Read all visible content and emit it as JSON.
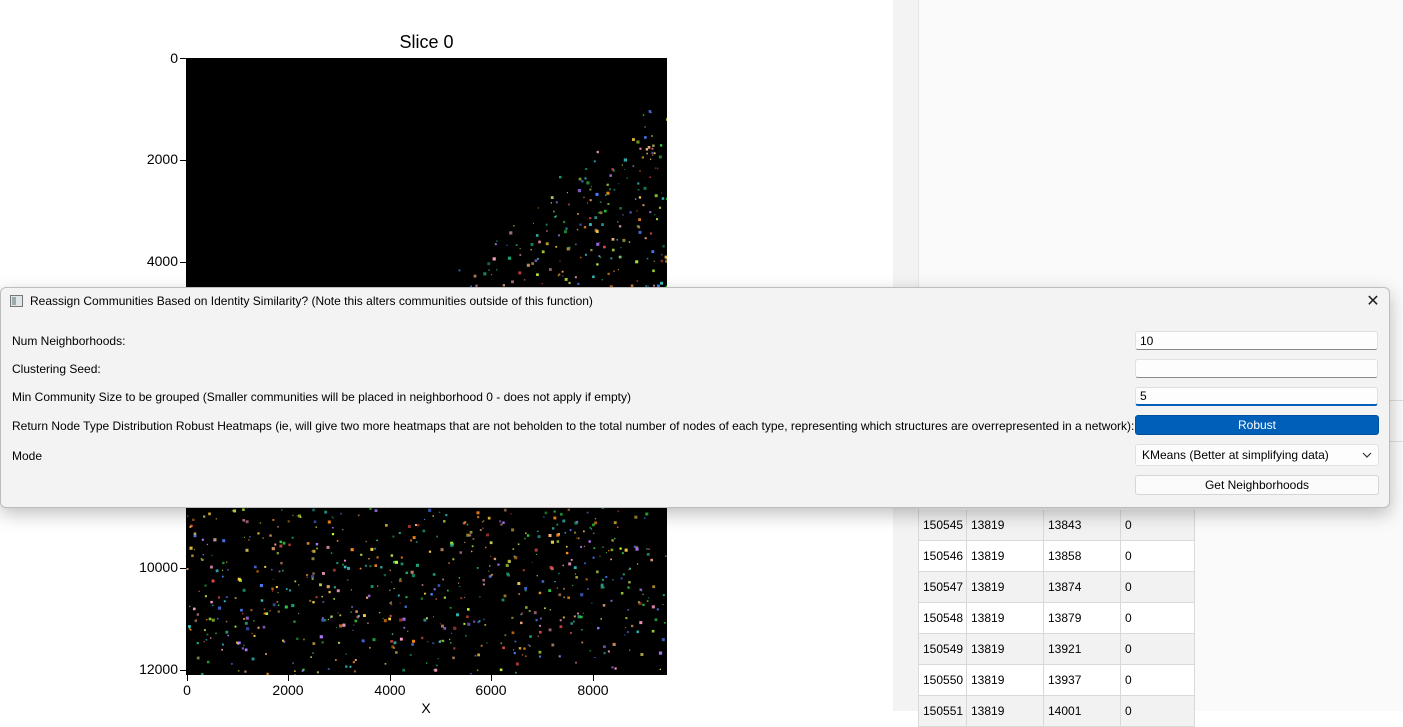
{
  "plot": {
    "title": "Slice 0",
    "xlabel": "X",
    "y_ticks": [
      "0",
      "2000",
      "4000",
      "10000",
      "12000"
    ],
    "x_ticks": [
      "0",
      "2000",
      "4000",
      "6000",
      "8000"
    ]
  },
  "dialog": {
    "title": "Reassign Communities Based on Identity Similarity? (Note this alters communities outside of this function)",
    "close_symbol": "✕",
    "fields": {
      "num_neighborhoods": {
        "label": "Num Neighborhoods:",
        "value": "10"
      },
      "clustering_seed": {
        "label": "Clustering Seed:",
        "value": ""
      },
      "min_community": {
        "label": "Min Community Size to be grouped (Smaller communities will be placed in neighborhood 0 - does not apply if empty)",
        "value": "5"
      },
      "robust": {
        "label": "Return Node Type Distribution Robust Heatmaps (ie, will give two more heatmaps that are not beholden to the total number of nodes of each type, representing which structures are overrepresented in a network):",
        "button": "Robust"
      },
      "mode": {
        "label": "Mode",
        "value": "KMeans (Better at simplifying data)"
      }
    },
    "submit_label": "Get Neighborhoods"
  },
  "table": {
    "rows": [
      [
        "150545",
        "13819",
        "13843",
        "0"
      ],
      [
        "150546",
        "13819",
        "13858",
        "0"
      ],
      [
        "150547",
        "13819",
        "13874",
        "0"
      ],
      [
        "150548",
        "13819",
        "13879",
        "0"
      ],
      [
        "150549",
        "13819",
        "13921",
        "0"
      ],
      [
        "150550",
        "13819",
        "13937",
        "0"
      ],
      [
        "150551",
        "13819",
        "14001",
        "0"
      ]
    ]
  },
  "colors": {
    "accent": "#005fb8",
    "plot_background": "#000000"
  }
}
